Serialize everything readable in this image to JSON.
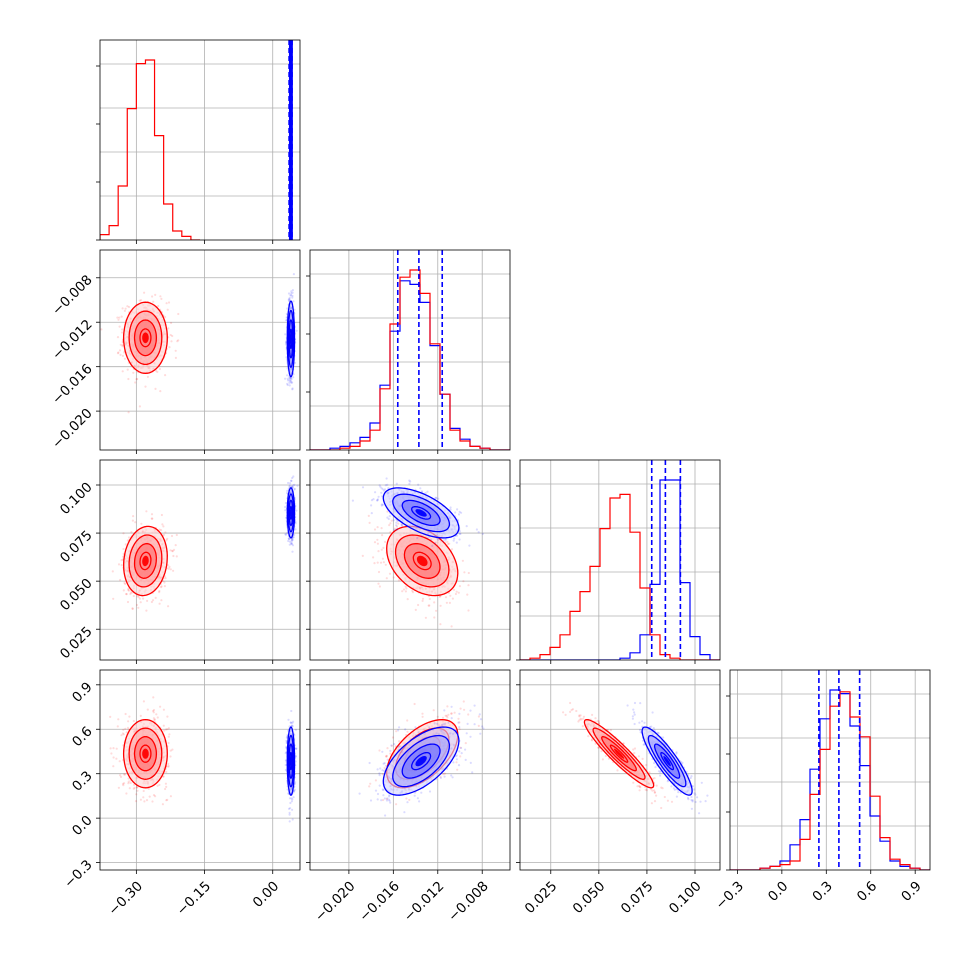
{
  "chart_data": {
    "type": "corner",
    "title": "",
    "parameters": [
      {
        "range": [
          -0.38,
          0.06
        ],
        "ticks": [
          -0.3,
          -0.15,
          0.0
        ],
        "tick_labels": [
          "−0.30",
          "−0.15",
          "0.00"
        ]
      },
      {
        "range": [
          -0.0235,
          -0.0055
        ],
        "ticks": [
          -0.02,
          -0.016,
          -0.012,
          -0.008
        ],
        "tick_labels": [
          "−0.020",
          "−0.016",
          "−0.012",
          "−0.008"
        ]
      },
      {
        "range": [
          0.009,
          0.113
        ],
        "ticks": [
          0.025,
          0.05,
          0.075,
          0.1
        ],
        "tick_labels": [
          "0.025",
          "0.050",
          "0.075",
          "0.100"
        ]
      },
      {
        "range": [
          -0.35,
          1.0
        ],
        "ticks": [
          -0.3,
          0.0,
          0.3,
          0.6,
          0.9
        ],
        "tick_labels": [
          "−0.3",
          "0.0",
          "0.3",
          "0.6",
          "0.9"
        ]
      }
    ],
    "grid": true,
    "colors": {
      "series_a": "#ff0000",
      "series_b": "#0000ff"
    },
    "series": [
      {
        "color": "red",
        "mean": [
          -0.28,
          -0.0134,
          0.0605,
          0.435
        ],
        "std": [
          0.024,
          0.0016,
          0.009,
          0.115
        ],
        "correlation": {
          "1-2": 0.0,
          "1-3": 0.12,
          "1-4": 0.0,
          "2-3": -0.35,
          "2-4": 0.55,
          "3-4": -0.93
        }
      },
      {
        "color": "blue",
        "mean": [
          0.04,
          -0.0135,
          0.0855,
          0.385
        ],
        "std": [
          0.004,
          0.0017,
          0.0065,
          0.115
        ],
        "correlation": {
          "1-2": 0.0,
          "1-3": 0.0,
          "1-4": 0.0,
          "2-3": -0.6,
          "2-4": 0.6,
          "3-4": -0.88
        }
      }
    ],
    "histograms": [
      {
        "param": 1,
        "bin_edges": [
          -0.38,
          -0.36,
          -0.34,
          -0.32,
          -0.3,
          -0.28,
          -0.26,
          -0.24,
          -0.22,
          -0.2,
          -0.18,
          -0.16
        ],
        "red_counts": [
          0.03,
          0.08,
          0.3,
          0.73,
          0.98,
          1.0,
          0.58,
          0.2,
          0.05,
          0.02,
          0.0
        ],
        "blue_counts": []
      },
      {
        "param": 2,
        "bin_edges": [
          -0.0235,
          -0.0226,
          -0.0217,
          -0.0208,
          -0.0199,
          -0.019,
          -0.0181,
          -0.0172,
          -0.0163,
          -0.0154,
          -0.0145,
          -0.0136,
          -0.0127,
          -0.0118,
          -0.0109,
          -0.01,
          -0.0091,
          -0.0082,
          -0.0073,
          -0.0064,
          -0.0055
        ],
        "red_counts": [
          0.0,
          0.0,
          0.0,
          0.01,
          0.02,
          0.05,
          0.11,
          0.34,
          0.7,
          0.96,
          1.0,
          0.87,
          0.59,
          0.31,
          0.11,
          0.05,
          0.02,
          0.01,
          0.0,
          0.0
        ],
        "blue_counts": [
          0.0,
          0.0,
          0.01,
          0.02,
          0.04,
          0.07,
          0.15,
          0.36,
          0.66,
          0.94,
          0.92,
          0.82,
          0.58,
          0.31,
          0.12,
          0.06,
          0.02,
          0.01,
          0.0,
          0.0
        ]
      },
      {
        "param": 3,
        "bin_edges": [
          0.009,
          0.0142,
          0.0194,
          0.0246,
          0.0298,
          0.035,
          0.0402,
          0.0454,
          0.0506,
          0.0558,
          0.061,
          0.0662,
          0.0714,
          0.0766,
          0.0818,
          0.087,
          0.0922,
          0.0974,
          0.1026,
          0.1078,
          0.113
        ],
        "red_counts": [
          0.0,
          0.01,
          0.03,
          0.07,
          0.14,
          0.27,
          0.38,
          0.52,
          0.73,
          0.9,
          0.92,
          0.71,
          0.4,
          0.14,
          0.03,
          0.01,
          0.0,
          0.0,
          0.0,
          0.0
        ],
        "blue_counts": [
          0.0,
          0.0,
          0.0,
          0.0,
          0.0,
          0.0,
          0.0,
          0.0,
          0.0,
          0.0,
          0.01,
          0.04,
          0.14,
          0.42,
          1.0,
          1.0,
          0.43,
          0.13,
          0.03,
          0.0
        ]
      },
      {
        "param": 4,
        "bin_edges": [
          -0.35,
          -0.2825,
          -0.215,
          -0.1475,
          -0.08,
          -0.0125,
          0.055,
          0.1225,
          0.19,
          0.2575,
          0.325,
          0.3925,
          0.46,
          0.5275,
          0.595,
          0.6625,
          0.73,
          0.7975,
          0.865,
          0.9325,
          1.0
        ],
        "red_counts": [
          0.0,
          0.0,
          0.0,
          0.01,
          0.02,
          0.03,
          0.05,
          0.17,
          0.42,
          0.67,
          0.91,
          0.99,
          0.85,
          0.74,
          0.41,
          0.18,
          0.06,
          0.03,
          0.01,
          0.0
        ],
        "blue_counts": [
          0.0,
          0.0,
          0.0,
          0.01,
          0.02,
          0.05,
          0.14,
          0.28,
          0.56,
          0.84,
          1.0,
          0.98,
          0.8,
          0.58,
          0.3,
          0.16,
          0.05,
          0.02,
          0.01,
          0.0
        ]
      }
    ],
    "blue_quantiles": [
      [
        0.036,
        0.0395,
        0.0425
      ],
      [
        -0.0156,
        -0.0137,
        -0.0116
      ],
      [
        0.0775,
        0.0846,
        0.0924
      ],
      [
        0.25,
        0.385,
        0.525
      ]
    ],
    "blue_hist_clipped_param1": true,
    "contour_levels": [
      0.5,
      1.0,
      1.5,
      2.0
    ],
    "scatter_points_per_panel": 700
  }
}
